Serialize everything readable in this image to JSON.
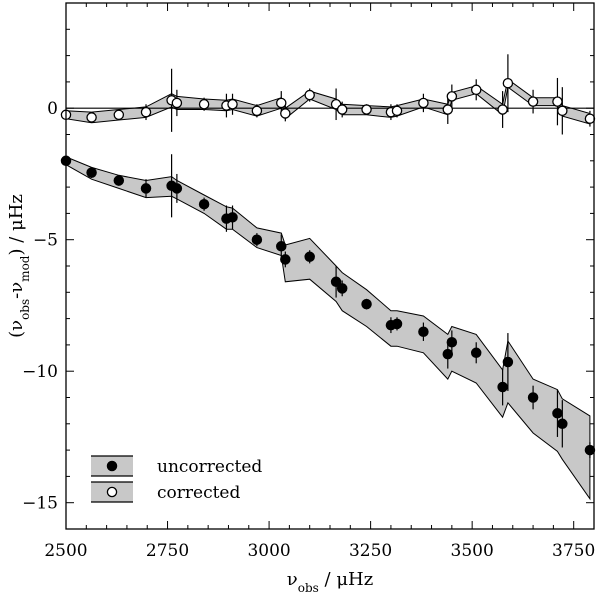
{
  "chart_data": {
    "type": "scatter",
    "title": "",
    "xlabel": "ν_obs / μHz",
    "ylabel": "(ν_obs-ν_mod) / μHz",
    "xlim": [
      2500,
      3800
    ],
    "ylim": [
      -16,
      4
    ],
    "xticks": [
      2500,
      2750,
      3000,
      3250,
      3500,
      3750
    ],
    "xtick_labels": [
      "2500",
      "2750",
      "3000",
      "3250",
      "3500",
      "3750"
    ],
    "yticks": [
      0,
      -5,
      -10,
      -15
    ],
    "ytick_labels": [
      "0",
      "−5",
      "−10",
      "−15"
    ],
    "zero_line": 0,
    "grid": false,
    "legend_position": "bottom-left",
    "series": [
      {
        "name": "uncorrected",
        "marker": "filled-circle",
        "color": "#000000",
        "band_color": "#c8c8c8",
        "points": [
          {
            "x": 2500,
            "y": -2.0,
            "err": 0.15
          },
          {
            "x": 2563,
            "y": -2.45,
            "err": 0.2
          },
          {
            "x": 2630,
            "y": -2.75,
            "err": 0.2
          },
          {
            "x": 2697,
            "y": -3.05,
            "err": 0.35
          },
          {
            "x": 2760,
            "y": -2.95,
            "err": 1.2
          },
          {
            "x": 2773,
            "y": -3.05,
            "err": 0.55
          },
          {
            "x": 2840,
            "y": -3.65,
            "err": 0.25
          },
          {
            "x": 2895,
            "y": -4.2,
            "err": 0.5
          },
          {
            "x": 2910,
            "y": -4.15,
            "err": 0.45
          },
          {
            "x": 2970,
            "y": -5.0,
            "err": 0.25
          },
          {
            "x": 3030,
            "y": -5.25,
            "err": 0.45
          },
          {
            "x": 3040,
            "y": -5.75,
            "err": 0.3
          },
          {
            "x": 3100,
            "y": -5.65,
            "err": 0.25
          },
          {
            "x": 3165,
            "y": -6.6,
            "err": 0.6
          },
          {
            "x": 3180,
            "y": -6.85,
            "err": 0.3
          },
          {
            "x": 3240,
            "y": -7.45,
            "err": 0.2
          },
          {
            "x": 3300,
            "y": -8.25,
            "err": 0.3
          },
          {
            "x": 3315,
            "y": -8.2,
            "err": 0.25
          },
          {
            "x": 3380,
            "y": -8.5,
            "err": 0.35
          },
          {
            "x": 3440,
            "y": -9.35,
            "err": 0.55
          },
          {
            "x": 3450,
            "y": -8.9,
            "err": 0.45
          },
          {
            "x": 3510,
            "y": -9.3,
            "err": 0.4
          },
          {
            "x": 3575,
            "y": -10.6,
            "err": 0.7
          },
          {
            "x": 3588,
            "y": -9.65,
            "err": 1.1
          },
          {
            "x": 3650,
            "y": -11.0,
            "err": 0.45
          },
          {
            "x": 3710,
            "y": -11.6,
            "err": 0.9
          },
          {
            "x": 3722,
            "y": -12.0,
            "err": 0.9
          },
          {
            "x": 3790,
            "y": -13.0,
            "err": 0.3
          }
        ],
        "band_upper": [
          [
            2500,
            -1.85
          ],
          [
            2563,
            -2.25
          ],
          [
            2630,
            -2.55
          ],
          [
            2697,
            -2.75
          ],
          [
            2760,
            -2.6
          ],
          [
            2773,
            -2.75
          ],
          [
            2840,
            -3.3
          ],
          [
            2895,
            -3.75
          ],
          [
            2910,
            -3.8
          ],
          [
            2970,
            -4.55
          ],
          [
            3030,
            -4.75
          ],
          [
            3040,
            -5.2
          ],
          [
            3100,
            -4.95
          ],
          [
            3165,
            -6.0
          ],
          [
            3180,
            -6.25
          ],
          [
            3240,
            -6.9
          ],
          [
            3300,
            -7.7
          ],
          [
            3315,
            -7.7
          ],
          [
            3380,
            -7.9
          ],
          [
            3440,
            -8.6
          ],
          [
            3450,
            -8.3
          ],
          [
            3510,
            -8.6
          ],
          [
            3575,
            -9.95
          ],
          [
            3588,
            -8.85
          ],
          [
            3650,
            -10.3
          ],
          [
            3710,
            -10.7
          ],
          [
            3722,
            -11.05
          ],
          [
            3790,
            -11.7
          ]
        ],
        "band_lower": [
          [
            2500,
            -2.15
          ],
          [
            2563,
            -2.7
          ],
          [
            2630,
            -3.05
          ],
          [
            2697,
            -3.4
          ],
          [
            2760,
            -3.35
          ],
          [
            2773,
            -3.45
          ],
          [
            2840,
            -4.0
          ],
          [
            2895,
            -4.6
          ],
          [
            2910,
            -4.6
          ],
          [
            2970,
            -5.3
          ],
          [
            3030,
            -5.6
          ],
          [
            3040,
            -6.6
          ],
          [
            3100,
            -6.5
          ],
          [
            3165,
            -7.35
          ],
          [
            3180,
            -7.7
          ],
          [
            3240,
            -8.3
          ],
          [
            3300,
            -9.05
          ],
          [
            3315,
            -9.05
          ],
          [
            3380,
            -9.3
          ],
          [
            3440,
            -10.3
          ],
          [
            3450,
            -10.0
          ],
          [
            3510,
            -10.45
          ],
          [
            3575,
            -11.75
          ],
          [
            3588,
            -11.2
          ],
          [
            3650,
            -12.35
          ],
          [
            3710,
            -13.05
          ],
          [
            3722,
            -13.35
          ],
          [
            3790,
            -14.85
          ]
        ]
      },
      {
        "name": "corrected",
        "marker": "open-circle",
        "color": "#000000",
        "band_color": "#c8c8c8",
        "points": [
          {
            "x": 2500,
            "y": -0.25,
            "err": 0.15
          },
          {
            "x": 2563,
            "y": -0.35,
            "err": 0.2
          },
          {
            "x": 2630,
            "y": -0.25,
            "err": 0.2
          },
          {
            "x": 2697,
            "y": -0.15,
            "err": 0.3
          },
          {
            "x": 2760,
            "y": 0.3,
            "err": 1.2
          },
          {
            "x": 2773,
            "y": 0.2,
            "err": 0.5
          },
          {
            "x": 2840,
            "y": 0.15,
            "err": 0.25
          },
          {
            "x": 2895,
            "y": 0.1,
            "err": 0.45
          },
          {
            "x": 2910,
            "y": 0.15,
            "err": 0.4
          },
          {
            "x": 2970,
            "y": -0.1,
            "err": 0.25
          },
          {
            "x": 3030,
            "y": 0.2,
            "err": 0.45
          },
          {
            "x": 3040,
            "y": -0.2,
            "err": 0.3
          },
          {
            "x": 3100,
            "y": 0.5,
            "err": 0.25
          },
          {
            "x": 3165,
            "y": 0.15,
            "err": 0.6
          },
          {
            "x": 3180,
            "y": -0.05,
            "err": 0.3
          },
          {
            "x": 3240,
            "y": -0.05,
            "err": 0.2
          },
          {
            "x": 3300,
            "y": -0.15,
            "err": 0.3
          },
          {
            "x": 3315,
            "y": -0.1,
            "err": 0.25
          },
          {
            "x": 3380,
            "y": 0.2,
            "err": 0.35
          },
          {
            "x": 3440,
            "y": -0.05,
            "err": 0.55
          },
          {
            "x": 3450,
            "y": 0.45,
            "err": 0.45
          },
          {
            "x": 3510,
            "y": 0.7,
            "err": 0.4
          },
          {
            "x": 3575,
            "y": -0.05,
            "err": 0.7
          },
          {
            "x": 3588,
            "y": 0.95,
            "err": 1.1
          },
          {
            "x": 3650,
            "y": 0.25,
            "err": 0.45
          },
          {
            "x": 3710,
            "y": 0.25,
            "err": 0.9
          },
          {
            "x": 3722,
            "y": -0.1,
            "err": 0.9
          },
          {
            "x": 3790,
            "y": -0.4,
            "err": 0.3
          }
        ],
        "band_upper": [
          [
            2500,
            -0.1
          ],
          [
            2563,
            -0.15
          ],
          [
            2630,
            -0.05
          ],
          [
            2697,
            0.05
          ],
          [
            2760,
            0.55
          ],
          [
            2773,
            0.45
          ],
          [
            2840,
            0.35
          ],
          [
            2895,
            0.3
          ],
          [
            2910,
            0.35
          ],
          [
            2970,
            0.1
          ],
          [
            3030,
            0.4
          ],
          [
            3040,
            0.0
          ],
          [
            3100,
            0.65
          ],
          [
            3165,
            0.35
          ],
          [
            3180,
            0.15
          ],
          [
            3240,
            0.1
          ],
          [
            3300,
            0.05
          ],
          [
            3315,
            0.1
          ],
          [
            3380,
            0.35
          ],
          [
            3440,
            0.15
          ],
          [
            3450,
            0.6
          ],
          [
            3510,
            0.85
          ],
          [
            3575,
            0.15
          ],
          [
            3588,
            1.1
          ],
          [
            3650,
            0.4
          ],
          [
            3710,
            0.4
          ],
          [
            3722,
            0.1
          ],
          [
            3790,
            -0.2
          ]
        ],
        "band_lower": [
          [
            2500,
            -0.4
          ],
          [
            2563,
            -0.55
          ],
          [
            2630,
            -0.45
          ],
          [
            2697,
            -0.35
          ],
          [
            2760,
            0.05
          ],
          [
            2773,
            -0.05
          ],
          [
            2840,
            -0.05
          ],
          [
            2895,
            -0.1
          ],
          [
            2910,
            -0.05
          ],
          [
            2970,
            -0.3
          ],
          [
            3030,
            0.0
          ],
          [
            3040,
            -0.4
          ],
          [
            3100,
            0.35
          ],
          [
            3165,
            -0.05
          ],
          [
            3180,
            -0.25
          ],
          [
            3240,
            -0.25
          ],
          [
            3300,
            -0.35
          ],
          [
            3315,
            -0.3
          ],
          [
            3380,
            0.05
          ],
          [
            3440,
            -0.25
          ],
          [
            3450,
            0.3
          ],
          [
            3510,
            0.55
          ],
          [
            3575,
            -0.25
          ],
          [
            3588,
            0.8
          ],
          [
            3650,
            0.1
          ],
          [
            3710,
            0.1
          ],
          [
            3722,
            -0.3
          ],
          [
            3790,
            -0.6
          ]
        ]
      }
    ]
  }
}
